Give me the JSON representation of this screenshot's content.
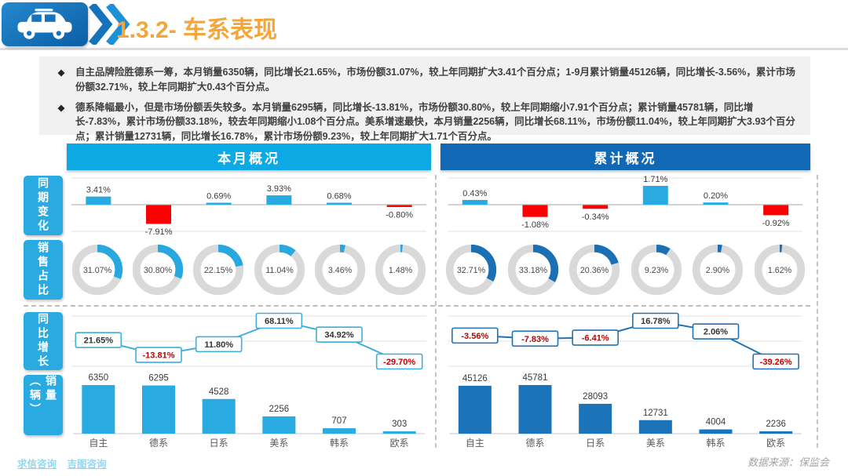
{
  "header": {
    "title": "1.3.2- 车系表现"
  },
  "bullets": [
    "自主品牌险胜德系一筹，本月销量6350辆，同比增长21.65%，市场份额31.07%，较上年同期扩大3.41个百分点；1-9月累计销量45126辆，同比增长-3.56%，累计市场份额32.71%，较上年同期扩大0.43个百分点。",
    "德系降幅最小，但是市场份额丢失较多。本月销量6295辆，同比增长-13.81%，市场份额30.80%，较上年同期缩小7.91个百分点；累计销量45781辆，同比增长-7.83%，累计市场份额33.18%，较去年同期缩小1.08个百分点。美系增速最快，本月销量2256辆，同比增长68.11%，市场份额11.04%，较上年同期扩大3.93个百分点；累计销量12731辆，同比增长16.78%，累计市场份额9.23%，较上年同期扩大1.71个百分点。"
  ],
  "panels": {
    "monthly": "本月概况",
    "cumulative": "累计概况"
  },
  "row_labels": [
    "同期变化",
    "销售占比",
    "同比增长",
    "销量（辆）"
  ],
  "footer": {
    "links": [
      "求信咨询",
      "吉图咨询"
    ],
    "source": "数据来源：保监会"
  },
  "colors": {
    "accent_cyan": "#29ABE2",
    "accent_blue": "#1B74B9",
    "header_cyan": "#0DA9E4",
    "header_blue": "#1168B4",
    "negative_red": "#FB0000",
    "title_orange": "#F2A73D"
  },
  "chart_data": [
    {
      "id": "monthly-change",
      "panel": "本月概况",
      "metric": "同期变化",
      "type": "bar",
      "variant": "diverging",
      "unit": "%",
      "grid": true,
      "categories": [
        "自主",
        "德系",
        "日系",
        "美系",
        "韩系",
        "欧系"
      ],
      "values": [
        3.41,
        -7.91,
        0.69,
        3.93,
        0.68,
        -0.8
      ],
      "colors": {
        "positive": "#29ABE2",
        "negative": "#FB0000"
      }
    },
    {
      "id": "monthly-share",
      "panel": "本月概况",
      "metric": "销售占比",
      "type": "pie",
      "variant": "donut",
      "unit": "%",
      "categories": [
        "自主",
        "德系",
        "日系",
        "美系",
        "韩系",
        "欧系"
      ],
      "values": [
        31.07,
        30.8,
        22.15,
        11.04,
        3.46,
        1.48
      ],
      "colors": {
        "arc": "#29A8E0",
        "track": "#D9D9D9"
      }
    },
    {
      "id": "monthly-growth",
      "panel": "本月概况",
      "metric": "同比增长",
      "type": "line",
      "unit": "%",
      "grid": true,
      "categories": [
        "自主",
        "德系",
        "日系",
        "美系",
        "韩系",
        "欧系"
      ],
      "values": [
        21.65,
        -13.81,
        11.8,
        68.11,
        34.92,
        -29.7
      ],
      "colors": {
        "line": "#3FAEDC",
        "negative_text": "#C00000"
      }
    },
    {
      "id": "monthly-volume",
      "panel": "本月概况",
      "metric": "销量（辆）",
      "type": "bar",
      "variant": "column",
      "categories": [
        "自主",
        "德系",
        "日系",
        "美系",
        "韩系",
        "欧系"
      ],
      "values": [
        6350,
        6295,
        4528,
        2256,
        707,
        303
      ],
      "colors": {
        "bar": "#29ABE2"
      }
    },
    {
      "id": "cumulative-change",
      "panel": "累计概况",
      "metric": "同期变化",
      "type": "bar",
      "variant": "diverging",
      "unit": "%",
      "grid": true,
      "categories": [
        "自主",
        "德系",
        "日系",
        "美系",
        "韩系",
        "欧系"
      ],
      "values": [
        0.43,
        -1.08,
        -0.34,
        1.71,
        0.2,
        -0.92
      ],
      "colors": {
        "positive": "#29ABE2",
        "negative": "#FB0000"
      }
    },
    {
      "id": "cumulative-share",
      "panel": "累计概况",
      "metric": "销售占比",
      "type": "pie",
      "variant": "donut",
      "unit": "%",
      "categories": [
        "自主",
        "德系",
        "日系",
        "美系",
        "韩系",
        "欧系"
      ],
      "values": [
        32.71,
        33.18,
        20.36,
        9.23,
        2.9,
        1.62
      ],
      "colors": {
        "arc": "#1B6FB5",
        "track": "#D9D9D9"
      }
    },
    {
      "id": "cumulative-growth",
      "panel": "累计概况",
      "metric": "同比增长",
      "type": "line",
      "unit": "%",
      "grid": true,
      "categories": [
        "自主",
        "德系",
        "日系",
        "美系",
        "韩系",
        "欧系"
      ],
      "values": [
        -3.56,
        -7.83,
        -6.41,
        16.78,
        2.06,
        -39.26
      ],
      "colors": {
        "line": "#2272B2",
        "negative_text": "#C00000"
      }
    },
    {
      "id": "cumulative-volume",
      "panel": "累计概况",
      "metric": "销量（辆）",
      "type": "bar",
      "variant": "column",
      "categories": [
        "自主",
        "德系",
        "日系",
        "美系",
        "韩系",
        "欧系"
      ],
      "values": [
        45126,
        45781,
        28093,
        12731,
        4004,
        2236
      ],
      "colors": {
        "bar": "#1B74B9"
      }
    }
  ]
}
